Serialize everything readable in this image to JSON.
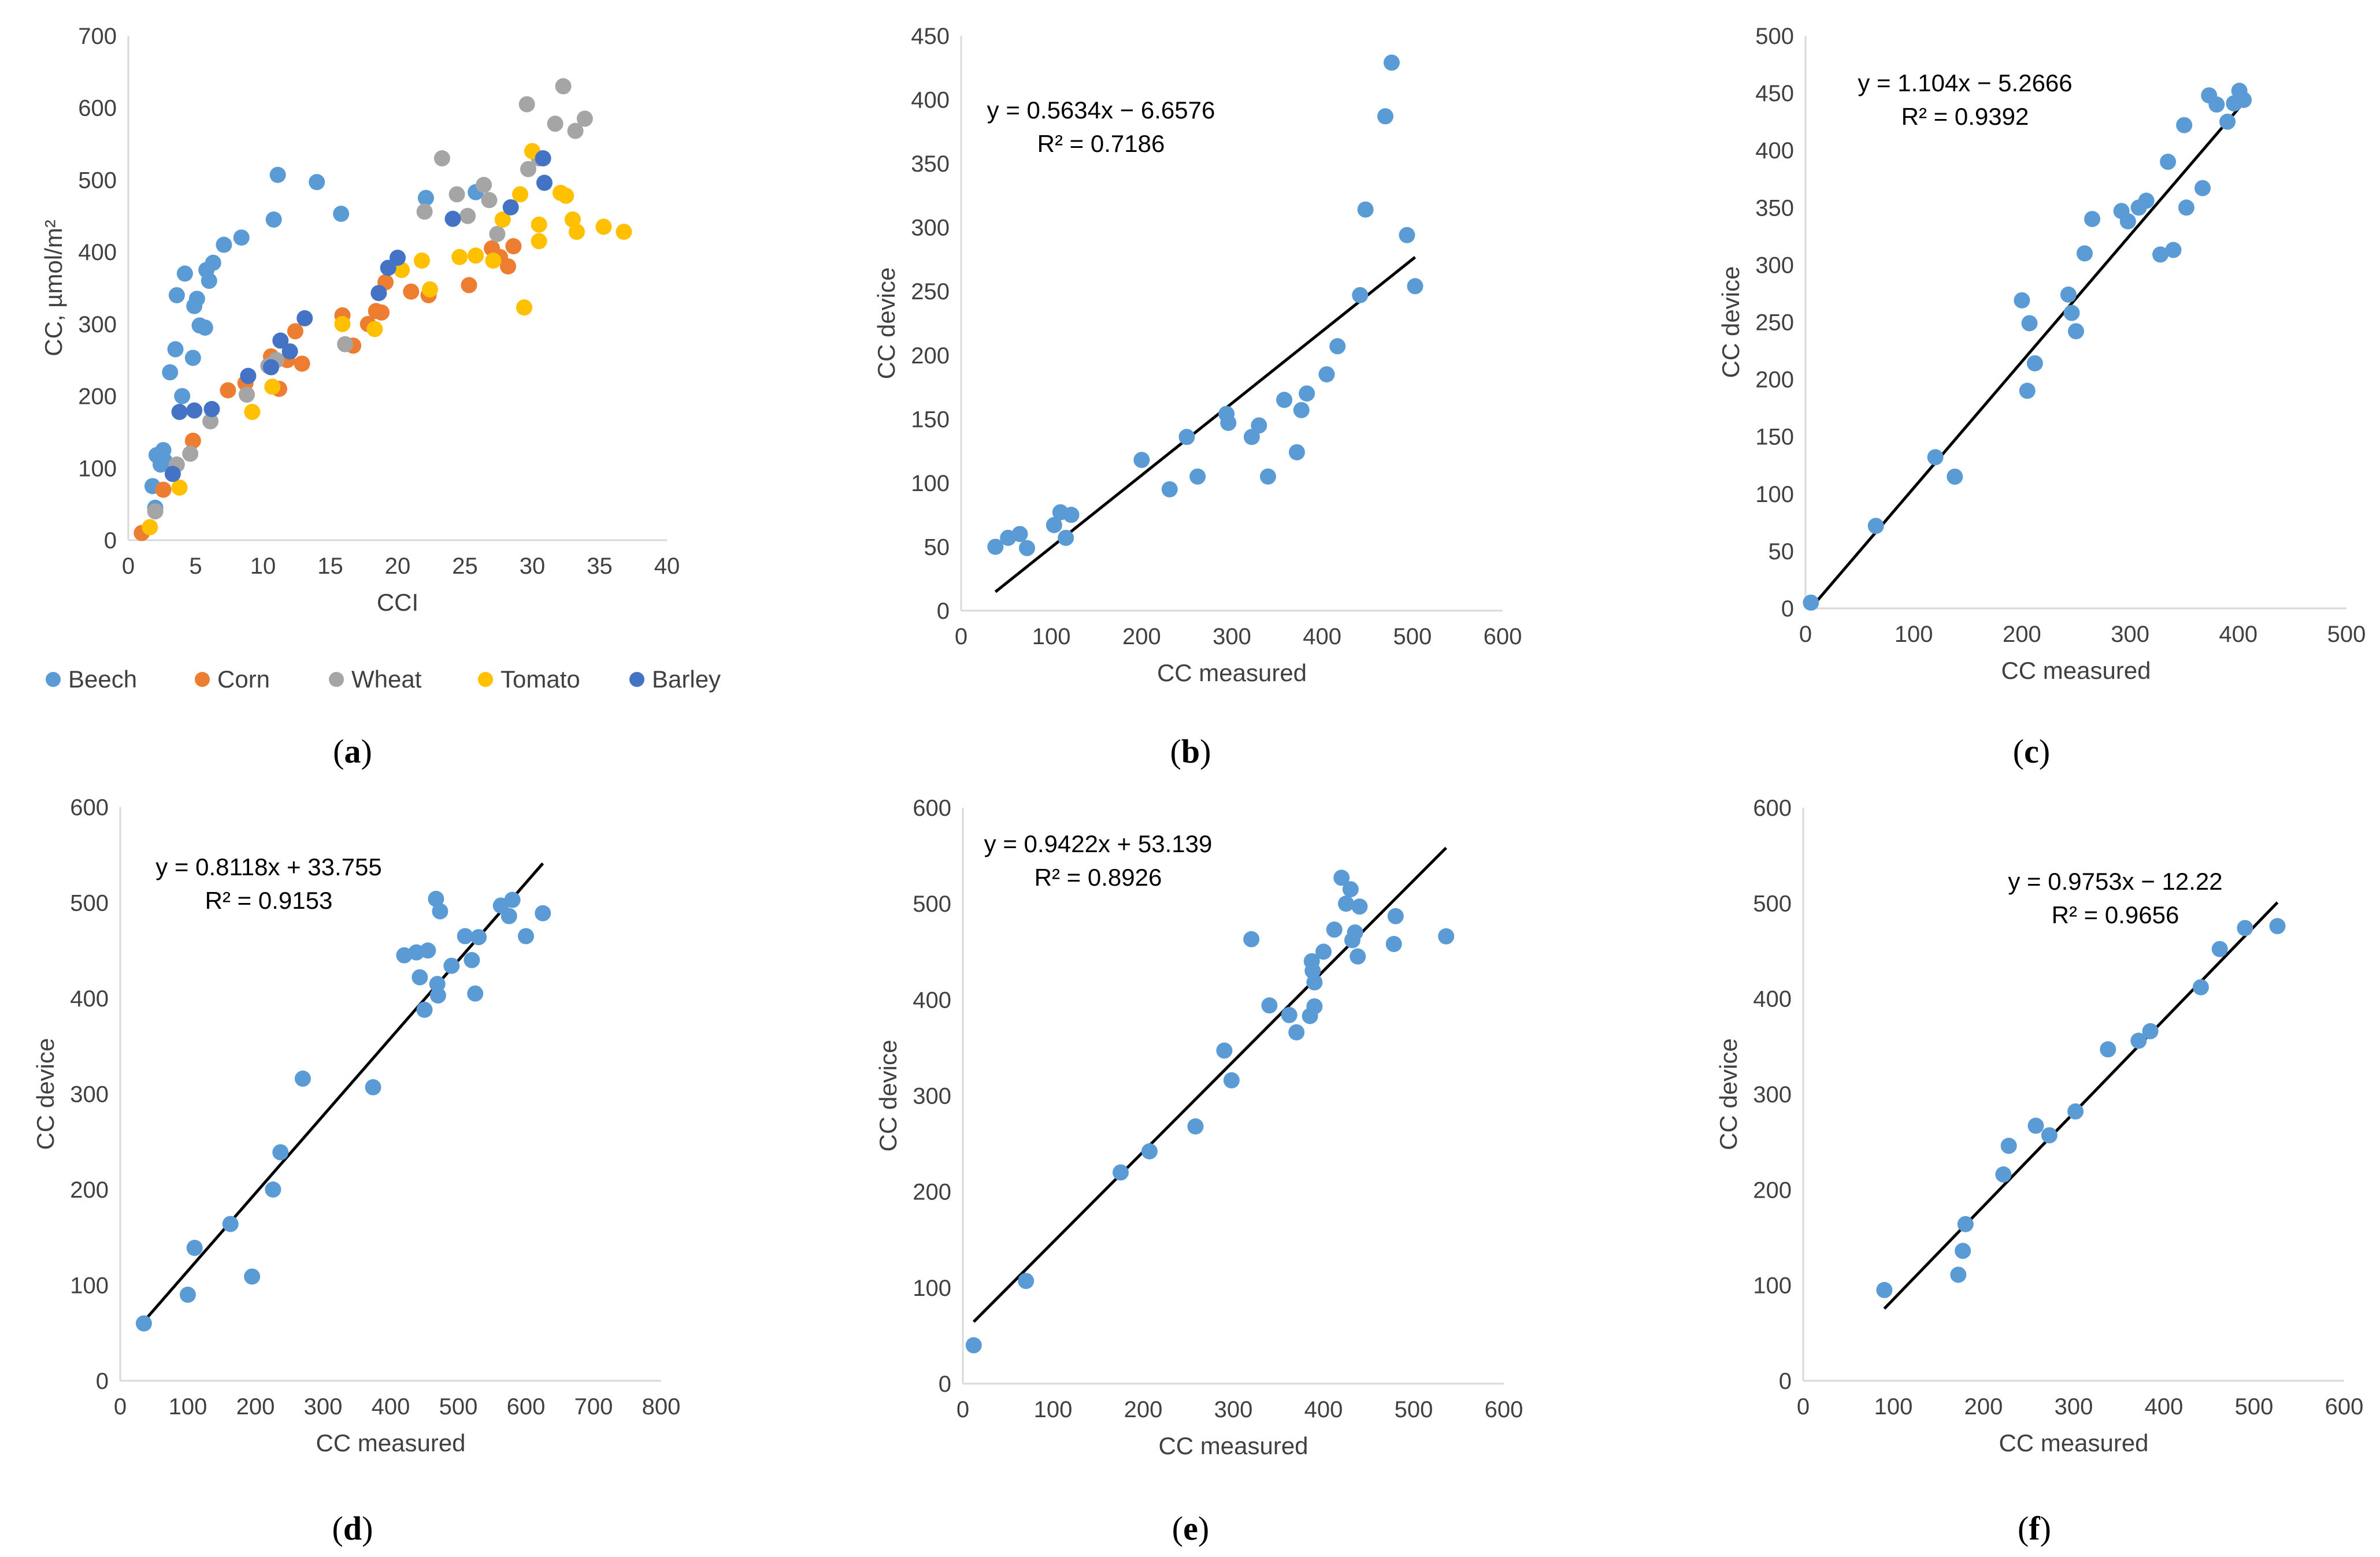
{
  "figure": {
    "colors": {
      "Beech": "#5b9bd5",
      "Corn": "#ed7d31",
      "Wheat": "#a5a5a5",
      "Tomato": "#ffc000",
      "Barley": "#4472c4",
      "point": "#5b9bd5",
      "trendline": "#000000",
      "axis": "#d9d9d9",
      "text": "#404040"
    }
  },
  "chart_data": [
    {
      "panel": "a",
      "type": "scatter",
      "panel_label_open": "(",
      "panel_label_letter": "a",
      "panel_label_close": ")",
      "xlabel": "CCI",
      "ylabel": "CC, µmol/m²",
      "xlim": [
        0,
        40
      ],
      "ylim": [
        0,
        700
      ],
      "xticks": [
        0,
        5,
        10,
        15,
        20,
        25,
        30,
        35,
        40
      ],
      "yticks": [
        0,
        100,
        200,
        300,
        400,
        500,
        600,
        700
      ],
      "legend_position": "bottom",
      "series": [
        {
          "name": "Beech",
          "points": [
            [
              1.8,
              75
            ],
            [
              2,
              45
            ],
            [
              2.1,
              118
            ],
            [
              2.4,
              105
            ],
            [
              2.6,
              125
            ],
            [
              2.7,
              110
            ],
            [
              3.1,
              233
            ],
            [
              3.5,
              265
            ],
            [
              3.6,
              340
            ],
            [
              4,
              200
            ],
            [
              4.2,
              370
            ],
            [
              4.8,
              253
            ],
            [
              4.9,
              325
            ],
            [
              5.1,
              335
            ],
            [
              5.3,
              298
            ],
            [
              5.7,
              295
            ],
            [
              5.8,
              375
            ],
            [
              6,
              360
            ],
            [
              6.3,
              385
            ],
            [
              7.1,
              410
            ],
            [
              8.4,
              420
            ],
            [
              10.8,
              445
            ],
            [
              11.1,
              507
            ],
            [
              14,
              497
            ],
            [
              15.8,
              453
            ],
            [
              22.1,
              475
            ],
            [
              25.8,
              483
            ]
          ]
        },
        {
          "name": "Corn",
          "points": [
            [
              1,
              10
            ],
            [
              2.6,
              70
            ],
            [
              4.8,
              138
            ],
            [
              7.4,
              208
            ],
            [
              8.7,
              218
            ],
            [
              10.6,
              255
            ],
            [
              11.2,
              210
            ],
            [
              11.8,
              250
            ],
            [
              12.4,
              290
            ],
            [
              12.9,
              245
            ],
            [
              15.9,
              312
            ],
            [
              16.7,
              270
            ],
            [
              17.8,
              300
            ],
            [
              18.4,
              318
            ],
            [
              18.8,
              316
            ],
            [
              19.1,
              358
            ],
            [
              21,
              345
            ],
            [
              22.3,
              340
            ],
            [
              25.3,
              354
            ],
            [
              27,
              405
            ],
            [
              27.6,
              393
            ],
            [
              28.2,
              380
            ],
            [
              28.6,
              408
            ]
          ]
        },
        {
          "name": "Wheat",
          "points": [
            [
              2,
              40
            ],
            [
              3.6,
              105
            ],
            [
              4.6,
              120
            ],
            [
              6.1,
              165
            ],
            [
              8.8,
              202
            ],
            [
              10.4,
              242
            ],
            [
              11,
              250
            ],
            [
              16.1,
              272
            ],
            [
              22,
              456
            ],
            [
              23.3,
              530
            ],
            [
              24.4,
              480
            ],
            [
              25.2,
              450
            ],
            [
              26.4,
              493
            ],
            [
              26.8,
              472
            ],
            [
              27.4,
              425
            ],
            [
              29.6,
              605
            ],
            [
              29.7,
              515
            ],
            [
              30.5,
              530
            ],
            [
              31.7,
              578
            ],
            [
              32.3,
              630
            ],
            [
              33.2,
              568
            ],
            [
              33.9,
              585
            ]
          ]
        },
        {
          "name": "Tomato",
          "points": [
            [
              1.6,
              18
            ],
            [
              3.8,
              73
            ],
            [
              9.2,
              178
            ],
            [
              10.7,
              213
            ],
            [
              15.9,
              300
            ],
            [
              18.3,
              293
            ],
            [
              20.3,
              375
            ],
            [
              21.8,
              388
            ],
            [
              22.4,
              348
            ],
            [
              24.6,
              393
            ],
            [
              25.8,
              395
            ],
            [
              27.1,
              388
            ],
            [
              27.8,
              445
            ],
            [
              29.1,
              480
            ],
            [
              29.4,
              323
            ],
            [
              30,
              540
            ],
            [
              30.5,
              438
            ],
            [
              30.5,
              415
            ],
            [
              32.1,
              482
            ],
            [
              32.5,
              478
            ],
            [
              33,
              445
            ],
            [
              33.3,
              428
            ],
            [
              35.3,
              435
            ],
            [
              36.8,
              428
            ]
          ]
        },
        {
          "name": "Barley",
          "points": [
            [
              3.3,
              92
            ],
            [
              3.8,
              178
            ],
            [
              4.9,
              180
            ],
            [
              6.2,
              182
            ],
            [
              8.9,
              228
            ],
            [
              10.6,
              240
            ],
            [
              11.3,
              277
            ],
            [
              12,
              262
            ],
            [
              13.1,
              308
            ],
            [
              18.6,
              343
            ],
            [
              19.3,
              378
            ],
            [
              20,
              392
            ],
            [
              24.1,
              446
            ],
            [
              28.4,
              462
            ],
            [
              30.8,
              530
            ],
            [
              30.9,
              496
            ]
          ]
        }
      ]
    },
    {
      "panel": "b",
      "type": "scatter",
      "panel_label_open": "(",
      "panel_label_letter": "b",
      "panel_label_close": ")",
      "xlabel": "CC measured",
      "ylabel": "CC device",
      "xlim": [
        0,
        600
      ],
      "ylim": [
        0,
        450
      ],
      "xticks": [
        0,
        100,
        200,
        300,
        400,
        500,
        600
      ],
      "yticks": [
        0,
        50,
        100,
        150,
        200,
        250,
        300,
        350,
        400,
        450
      ],
      "equation": "y = 0.5634x − 6.6576",
      "r2": "R² = 0.7186",
      "trendline": {
        "slope": 0.5634,
        "intercept": -6.6576,
        "x_range": [
          38,
          503
        ]
      },
      "points": [
        [
          38,
          50
        ],
        [
          52,
          57
        ],
        [
          65,
          60
        ],
        [
          73,
          49
        ],
        [
          103,
          67
        ],
        [
          110,
          77
        ],
        [
          116,
          57
        ],
        [
          122,
          75
        ],
        [
          200,
          118
        ],
        [
          231,
          95
        ],
        [
          250,
          136
        ],
        [
          262,
          105
        ],
        [
          294,
          154
        ],
        [
          296,
          147
        ],
        [
          322,
          136
        ],
        [
          330,
          145
        ],
        [
          340,
          105
        ],
        [
          358,
          165
        ],
        [
          372,
          124
        ],
        [
          377,
          157
        ],
        [
          383,
          170
        ],
        [
          405,
          185
        ],
        [
          417,
          207
        ],
        [
          442,
          247
        ],
        [
          448,
          314
        ],
        [
          470,
          387
        ],
        [
          477,
          429
        ],
        [
          494,
          294
        ],
        [
          503,
          254
        ]
      ]
    },
    {
      "panel": "c",
      "type": "scatter",
      "panel_label_open": "(",
      "panel_label_letter": "c",
      "panel_label_close": ")",
      "xlabel": "CC measured",
      "ylabel": "CC device",
      "xlim": [
        0,
        500
      ],
      "ylim": [
        0,
        500
      ],
      "xticks": [
        0,
        100,
        200,
        300,
        400,
        500
      ],
      "yticks": [
        0,
        50,
        100,
        150,
        200,
        250,
        300,
        350,
        400,
        450,
        500
      ],
      "equation": "y = 1.104x − 5.2666",
      "r2": "R² = 0.9392",
      "trendline": {
        "slope": 1.104,
        "intercept": -5.2666,
        "x_range": [
          5,
          405
        ]
      },
      "points": [
        [
          5,
          5
        ],
        [
          65,
          72
        ],
        [
          120,
          132
        ],
        [
          138,
          115
        ],
        [
          200,
          269
        ],
        [
          205,
          190
        ],
        [
          207,
          249
        ],
        [
          212,
          214
        ],
        [
          243,
          274
        ],
        [
          246,
          258
        ],
        [
          250,
          242
        ],
        [
          258,
          310
        ],
        [
          265,
          340
        ],
        [
          292,
          347
        ],
        [
          298,
          338
        ],
        [
          308,
          350
        ],
        [
          315,
          356
        ],
        [
          328,
          309
        ],
        [
          340,
          313
        ],
        [
          335,
          390
        ],
        [
          350,
          422
        ],
        [
          352,
          350
        ],
        [
          367,
          367
        ],
        [
          373,
          448
        ],
        [
          380,
          440
        ],
        [
          390,
          425
        ],
        [
          396,
          441
        ],
        [
          401,
          452
        ],
        [
          405,
          444
        ]
      ]
    },
    {
      "panel": "d",
      "type": "scatter",
      "panel_label_open": "(",
      "panel_label_letter": "d",
      "panel_label_close": ")",
      "xlabel": "CC measured",
      "ylabel": "CC device",
      "xlim": [
        0,
        800
      ],
      "ylim": [
        0,
        600
      ],
      "xticks": [
        0,
        100,
        200,
        300,
        400,
        500,
        600,
        700,
        800
      ],
      "yticks": [
        0,
        100,
        200,
        300,
        400,
        500,
        600
      ],
      "equation": "y = 0.8118x + 33.755",
      "r2": "R² = 0.9153",
      "trendline": {
        "slope": 0.8118,
        "intercept": 33.755,
        "x_range": [
          35,
          625
        ]
      },
      "points": [
        [
          35,
          60
        ],
        [
          100,
          90
        ],
        [
          110,
          139
        ],
        [
          163,
          164
        ],
        [
          195,
          109
        ],
        [
          226,
          200
        ],
        [
          237,
          239
        ],
        [
          270,
          316
        ],
        [
          374,
          307
        ],
        [
          420,
          445
        ],
        [
          438,
          448
        ],
        [
          443,
          422
        ],
        [
          450,
          388
        ],
        [
          455,
          450
        ],
        [
          467,
          504
        ],
        [
          469,
          415
        ],
        [
          470,
          403
        ],
        [
          473,
          491
        ],
        [
          490,
          434
        ],
        [
          510,
          465
        ],
        [
          520,
          440
        ],
        [
          525,
          405
        ],
        [
          530,
          464
        ],
        [
          563,
          497
        ],
        [
          575,
          486
        ],
        [
          580,
          503
        ],
        [
          600,
          465
        ],
        [
          625,
          489
        ]
      ]
    },
    {
      "panel": "e",
      "type": "scatter",
      "panel_label_open": "(",
      "panel_label_letter": "e",
      "panel_label_close": ")",
      "xlabel": "CC measured",
      "ylabel": "CC device",
      "xlim": [
        0,
        600
      ],
      "ylim": [
        0,
        600
      ],
      "xticks": [
        0,
        100,
        200,
        300,
        400,
        500,
        600
      ],
      "yticks": [
        0,
        100,
        200,
        300,
        400,
        500,
        600
      ],
      "equation": "y = 0.9422x + 53.139",
      "r2": "R² = 0.8926",
      "trendline": {
        "slope": 0.9422,
        "intercept": 53.139,
        "x_range": [
          12,
          536
        ]
      },
      "points": [
        [
          12,
          40
        ],
        [
          70,
          107
        ],
        [
          175,
          220
        ],
        [
          207,
          242
        ],
        [
          258,
          268
        ],
        [
          290,
          347
        ],
        [
          298,
          316
        ],
        [
          320,
          463
        ],
        [
          340,
          394
        ],
        [
          362,
          384
        ],
        [
          370,
          366
        ],
        [
          385,
          383
        ],
        [
          387,
          440
        ],
        [
          388,
          430
        ],
        [
          390,
          418
        ],
        [
          390,
          393
        ],
        [
          400,
          450
        ],
        [
          412,
          473
        ],
        [
          420,
          527
        ],
        [
          425,
          500
        ],
        [
          430,
          515
        ],
        [
          432,
          462
        ],
        [
          435,
          470
        ],
        [
          438,
          445
        ],
        [
          440,
          497
        ],
        [
          478,
          458
        ],
        [
          480,
          487
        ],
        [
          536,
          466
        ]
      ]
    },
    {
      "panel": "f",
      "type": "scatter",
      "panel_label_open": "(",
      "panel_label_letter": "f",
      "panel_label_close": ")",
      "xlabel": "CC measured",
      "ylabel": "CC device",
      "xlim": [
        0,
        600
      ],
      "ylim": [
        0,
        600
      ],
      "xticks": [
        0,
        100,
        200,
        300,
        400,
        500,
        600
      ],
      "yticks": [
        0,
        100,
        200,
        300,
        400,
        500,
        600
      ],
      "equation": "y = 0.9753x − 12.22",
      "r2": "R² = 0.9656",
      "trendline": {
        "slope": 0.9753,
        "intercept": -12.22,
        "x_range": [
          90,
          526
        ]
      },
      "points": [
        [
          90,
          95
        ],
        [
          172,
          111
        ],
        [
          177,
          136
        ],
        [
          180,
          164
        ],
        [
          222,
          216
        ],
        [
          228,
          246
        ],
        [
          258,
          267
        ],
        [
          273,
          257
        ],
        [
          302,
          282
        ],
        [
          338,
          347
        ],
        [
          372,
          356
        ],
        [
          385,
          366
        ],
        [
          441,
          412
        ],
        [
          462,
          452
        ],
        [
          490,
          474
        ],
        [
          526,
          476
        ]
      ]
    }
  ]
}
